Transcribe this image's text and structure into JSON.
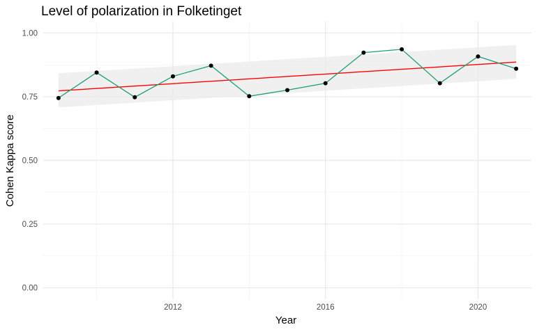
{
  "chart_data": {
    "type": "line",
    "title": "Level of polarization in Folketinget",
    "xlabel": "Year",
    "ylabel": "Cohen Kappa score",
    "xlim": [
      2008.6,
      2021.4
    ],
    "ylim": [
      -0.045,
      1.045
    ],
    "x_ticks": [
      2012,
      2016,
      2020
    ],
    "x_tick_labels": [
      "2012",
      "2016",
      "2020"
    ],
    "x_minor_ticks": [
      2010,
      2014,
      2018
    ],
    "y_ticks": [
      0.0,
      0.25,
      0.5,
      0.75,
      1.0
    ],
    "y_tick_labels": [
      "0.00",
      "0.25",
      "0.50",
      "0.75",
      "1.00"
    ],
    "grid": true,
    "series": [
      {
        "x": [
          2009,
          2010,
          2011,
          2012,
          2013,
          2014,
          2015,
          2016,
          2017,
          2018,
          2019,
          2020,
          2021
        ],
        "y": [
          0.745,
          0.845,
          0.748,
          0.83,
          0.872,
          0.752,
          0.776,
          0.803,
          0.923,
          0.936,
          0.803,
          0.908,
          0.86
        ]
      }
    ],
    "trend": {
      "method": "lm",
      "x": [
        2009,
        2021
      ],
      "y": [
        0.773,
        0.886
      ],
      "ci_lower": [
        0.708,
        0.82
      ],
      "ci_upper": [
        0.842,
        0.953
      ]
    },
    "colors": {
      "series_line": "#1b9e77",
      "points": "#000000",
      "trend_line": "#ff0000",
      "ci_band": "#ebebeb",
      "grid_major": "#ebebeb",
      "grid_minor": "#f4f4f4"
    }
  }
}
